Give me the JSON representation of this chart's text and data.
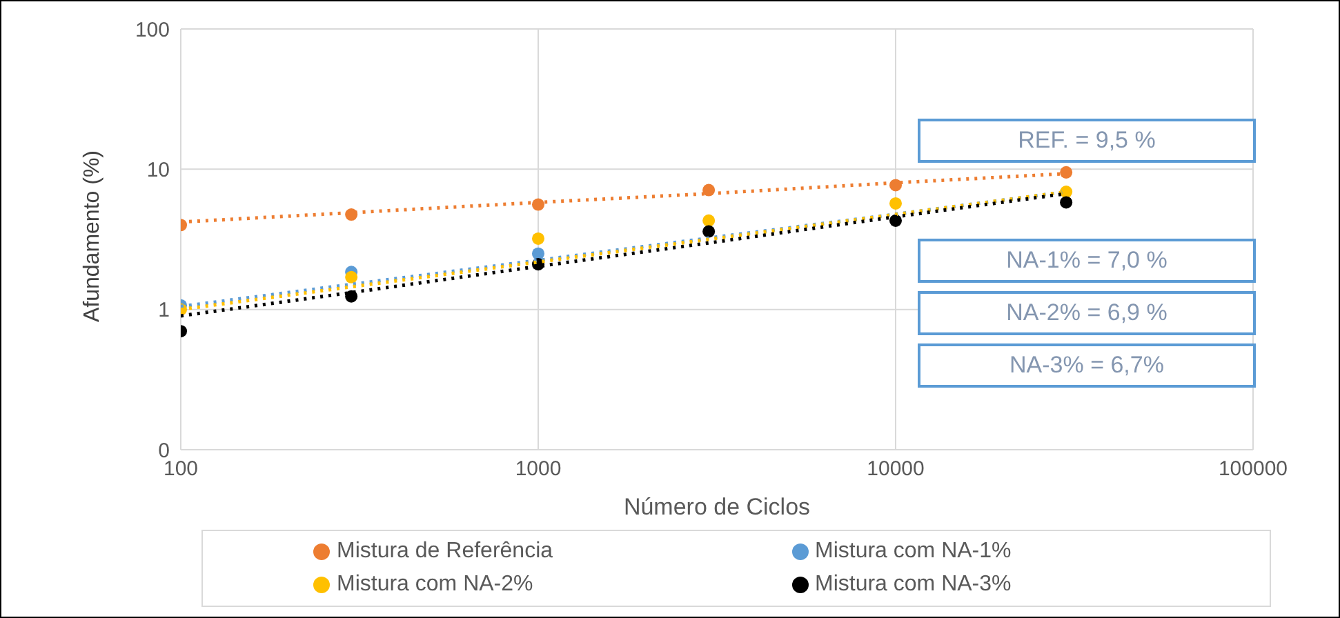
{
  "chart_data": {
    "type": "scatter",
    "xlabel": "Número de Ciclos",
    "ylabel": "Afundamento (%)",
    "log": "xy",
    "grid": true,
    "legend": "bottom",
    "marker": "circle",
    "xlim": [
      100,
      100000
    ],
    "xticks": [
      100,
      1000,
      10000,
      100000
    ],
    "ylim": [
      0.1,
      100
    ],
    "yticks": [
      {
        "value": 0.1,
        "label": "0"
      },
      1,
      10,
      100
    ],
    "x": [
      100,
      300,
      1000,
      3000,
      10000,
      30000
    ],
    "series": [
      {
        "name": "Mistura de Referência",
        "color": "#ed7d31",
        "values": [
          4.0,
          4.75,
          5.6,
          7.1,
          7.7,
          9.5
        ]
      },
      {
        "name": "Mistura com NA-1%",
        "color": "#5b9bd5",
        "values": [
          1.07,
          1.85,
          2.5,
          null,
          null,
          null
        ]
      },
      {
        "name": "Mistura com NA-2%",
        "color": "#ffc000",
        "values": [
          1.0,
          1.7,
          3.2,
          4.3,
          5.7,
          6.9
        ]
      },
      {
        "name": "Mistura com NA-3%",
        "color": "#000000",
        "values": [
          0.7,
          1.24,
          2.1,
          3.6,
          4.3,
          5.8
        ]
      },
      {
        "type": "line",
        "color": "#ed7d31",
        "values": [
          4.2,
          4.9,
          5.8,
          6.7,
          8.0,
          9.3
        ],
        "line_style": "dotted",
        "marker": "none"
      },
      {
        "type": "line",
        "color": "#5b9bd5",
        "values": [
          1.05,
          1.51,
          2.24,
          3.23,
          4.78,
          6.9
        ],
        "line_style": "dotted",
        "marker": "none"
      },
      {
        "type": "line",
        "color": "#ffc000",
        "values": [
          1.0,
          1.45,
          2.18,
          3.16,
          4.76,
          6.9
        ],
        "line_style": "dotted",
        "marker": "none"
      },
      {
        "type": "line",
        "color": "#000000",
        "values": [
          0.9,
          1.32,
          2.03,
          2.98,
          4.58,
          6.7
        ],
        "line_style": "dotted",
        "marker": "none"
      }
    ],
    "annotations": [
      "REF. = 9,5 %",
      "NA-1% = 7,0 %",
      "NA-2% = 6,9 %",
      "NA-3% = 6,7%"
    ]
  }
}
